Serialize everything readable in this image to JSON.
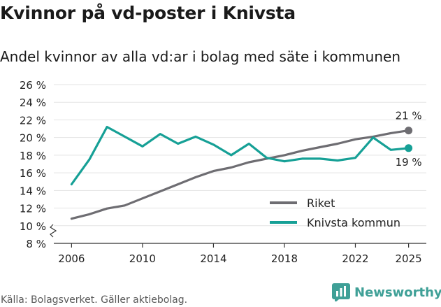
{
  "title": "Kvinnor på vd-poster i Knivsta",
  "subtitle": "Andel kvinnor av alla vd:ar i bolag med säte i kommunen",
  "source": "Källa: Bolagsverket. Gäller aktiebolag.",
  "brand": "Newsworthy",
  "colors": {
    "riket": "#6e6d72",
    "knivsta": "#16a096",
    "brand": "#3fa097",
    "grid": "#e3e3e3",
    "axis": "#333333"
  },
  "chart_data": {
    "type": "line",
    "title": "Kvinnor på vd-poster i Knivsta",
    "ylabel": "",
    "xlabel": "",
    "ylim": [
      8,
      26
    ],
    "xlim": [
      2005,
      2026
    ],
    "axis_break": true,
    "y_ticks": [
      8,
      10,
      12,
      14,
      16,
      18,
      20,
      22,
      24,
      26
    ],
    "y_tick_labels": [
      "8 %",
      "10 %",
      "12 %",
      "14 %",
      "16 %",
      "18 %",
      "20 %",
      "22 %",
      "24 %",
      "26 %"
    ],
    "x_ticks": [
      2006,
      2010,
      2014,
      2018,
      2022,
      2025
    ],
    "x_tick_labels": [
      "2006",
      "2010",
      "2014",
      "2018",
      "2022",
      "2025"
    ],
    "x": [
      2006,
      2007,
      2008,
      2009,
      2010,
      2011,
      2012,
      2013,
      2014,
      2015,
      2016,
      2017,
      2018,
      2019,
      2020,
      2021,
      2022,
      2023,
      2024,
      2025
    ],
    "series": [
      {
        "name": "Riket",
        "color": "#6e6d72",
        "values": [
          10.8,
          11.3,
          11.95,
          12.3,
          13.1,
          13.9,
          14.7,
          15.5,
          16.2,
          16.6,
          17.2,
          17.6,
          18.0,
          18.5,
          18.9,
          19.3,
          19.8,
          20.1,
          20.5,
          20.8
        ],
        "end_label": "21 %"
      },
      {
        "name": "Knivsta kommun",
        "color": "#16a096",
        "values": [
          14.7,
          17.5,
          21.2,
          20.1,
          19.0,
          20.4,
          19.3,
          20.1,
          19.2,
          18.0,
          19.3,
          17.7,
          17.3,
          17.6,
          17.6,
          17.4,
          17.7,
          20.0,
          18.6,
          18.8
        ],
        "end_label": "19 %"
      }
    ],
    "legend": [
      {
        "label": "Riket",
        "color": "#6e6d72"
      },
      {
        "label": "Knivsta kommun",
        "color": "#16a096"
      }
    ],
    "legend_position": "bottom-right"
  }
}
